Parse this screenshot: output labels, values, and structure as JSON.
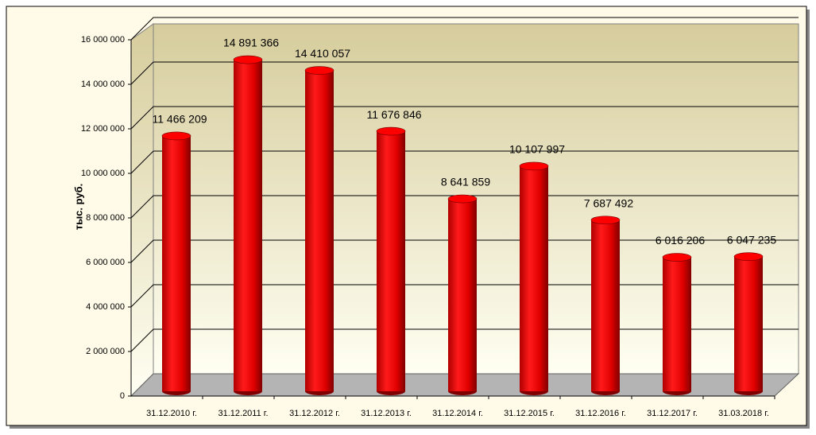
{
  "chart_data": {
    "type": "bar",
    "y_axis_label": "тыс. руб.",
    "categories": [
      "31.12.2010 г.",
      "31.12.2011 г.",
      "31.12.2012 г.",
      "31.12.2013 г.",
      "31.12.2014 г.",
      "31.12.2015 г.",
      "31.12.2016 г.",
      "31.12.2017 г.",
      "31.03.2018 г."
    ],
    "values": [
      11466209,
      14891366,
      14410057,
      11676846,
      8641859,
      10107997,
      7687492,
      6016206,
      6047235
    ],
    "value_labels": [
      "11 466 209",
      "14 891 366",
      "14 410 057",
      "11 676 846",
      "8 641 859",
      "10 107 997",
      "7 687 492",
      "6 016 206",
      "6 047 235"
    ],
    "color": "#ff0000",
    "ylim": [
      0,
      16000000
    ],
    "yticks": [
      0,
      {
        "value": 2000000,
        "label": "2 000 000"
      },
      {
        "value": 4000000,
        "label": "4 000 000"
      },
      {
        "value": 6000000,
        "label": "6 000 000"
      },
      {
        "value": 8000000,
        "label": "8 000 000"
      },
      {
        "value": 10000000,
        "label": "10 000 000"
      },
      {
        "value": 12000000,
        "label": "12 000 000"
      },
      {
        "value": 14000000,
        "label": "14 000 000"
      },
      {
        "value": 16000000,
        "label": "16 000 000"
      }
    ],
    "grid": true
  }
}
